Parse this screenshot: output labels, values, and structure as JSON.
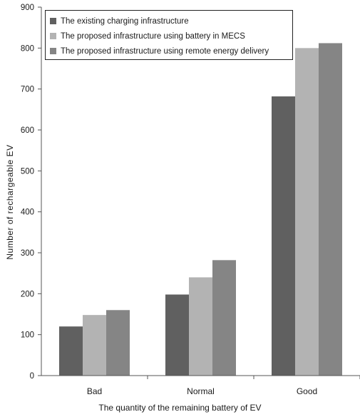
{
  "chart_data": {
    "type": "bar",
    "categories": [
      "Bad",
      "Normal",
      "Good"
    ],
    "series": [
      {
        "name": "The existing charging infrastructure",
        "values": [
          120,
          198,
          682
        ],
        "color": "#606060"
      },
      {
        "name": "The proposed infrastructure using battery in MECS",
        "values": [
          148,
          240,
          800
        ],
        "color": "#b3b3b3"
      },
      {
        "name": "The proposed infrastructure using remote energy delivery",
        "values": [
          160,
          282,
          812
        ],
        "color": "#858585"
      }
    ],
    "title": "",
    "xlabel": "The quantity of the remaining battery of EV",
    "ylabel": "Number of rechargeable EV",
    "ylim": [
      0,
      900
    ],
    "yticks": [
      0,
      100,
      200,
      300,
      400,
      500,
      600,
      700,
      800,
      900
    ],
    "grid": false,
    "legend_position": "top-left"
  }
}
